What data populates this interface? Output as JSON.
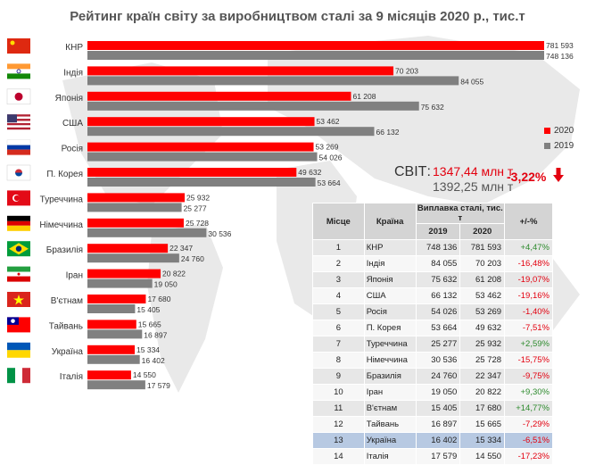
{
  "title": "Рейтинг країн світу за виробництвом сталі за 9 місяців 2020 р., тис.т",
  "colors": {
    "y2020": "#ff0000",
    "y2019": "#808080",
    "map": "#e6e6e6",
    "positive": "#2e8b2e",
    "negative": "#e3000f"
  },
  "legend": [
    {
      "label": "2020",
      "color": "#ff0000"
    },
    {
      "label": "2019",
      "color": "#808080"
    }
  ],
  "world": {
    "label": "СВІТ:",
    "v2020": "1347,44 млн т",
    "v2019": "1392,25 млн т",
    "change": "-3,22%",
    "arrow_icon": "down-arrow-icon"
  },
  "chart_data": {
    "type": "bar",
    "orientation": "horizontal",
    "title": "Рейтинг країн світу за виробництвом сталі за 9 місяців 2020 р., тис.т",
    "categories": [
      "КНР",
      "Індія",
      "Японія",
      "США",
      "Росія",
      "П. Корея",
      "Туреччина",
      "Німеччина",
      "Бразилія",
      "Іран",
      "В'єтнам",
      "Тайвань",
      "Україна",
      "Італія"
    ],
    "flag_icons": [
      "china-flag-icon",
      "india-flag-icon",
      "japan-flag-icon",
      "usa-flag-icon",
      "russia-flag-icon",
      "south-korea-flag-icon",
      "turkey-flag-icon",
      "germany-flag-icon",
      "brazil-flag-icon",
      "iran-flag-icon",
      "vietnam-flag-icon",
      "taiwan-flag-icon",
      "ukraine-flag-icon",
      "italy-flag-icon"
    ],
    "series": [
      {
        "name": "2020",
        "values": [
          781593,
          70203,
          61208,
          53462,
          53269,
          49632,
          25932,
          25728,
          22347,
          20822,
          17680,
          15665,
          15334,
          14550
        ],
        "labels": [
          "781 593",
          "70 203",
          "61 208",
          "53 462",
          "53 269",
          "49 632",
          "25 932",
          "25 728",
          "22 347",
          "20 822",
          "17 680",
          "15 665",
          "15 334",
          "14 550"
        ]
      },
      {
        "name": "2019",
        "values": [
          748136,
          84055,
          75632,
          66132,
          54026,
          53664,
          25277,
          30536,
          24760,
          19050,
          15405,
          16897,
          16402,
          17579
        ],
        "labels": [
          "748 136",
          "84 055",
          "75 632",
          "66 132",
          "54 026",
          "53 664",
          "25 277",
          "30 536",
          "24 760",
          "19 050",
          "15 405",
          "16 897",
          "16 402",
          "17 579"
        ]
      }
    ],
    "axis_break": true,
    "legend_position": "right"
  },
  "table": {
    "headers": {
      "rank": "Місце",
      "country": "Країна",
      "group": "Виплавка сталі, тис. т",
      "y2019": "2019",
      "y2020": "2020",
      "change": "+/-%"
    },
    "rows": [
      {
        "rank": "1",
        "country": "КНР",
        "v2019": "748 136",
        "v2020": "781 593",
        "change": "+4,47%",
        "sign": "pos"
      },
      {
        "rank": "2",
        "country": "Індія",
        "v2019": "84 055",
        "v2020": "70 203",
        "change": "-16,48%",
        "sign": "neg"
      },
      {
        "rank": "3",
        "country": "Японія",
        "v2019": "75 632",
        "v2020": "61 208",
        "change": "-19,07%",
        "sign": "neg"
      },
      {
        "rank": "4",
        "country": "США",
        "v2019": "66 132",
        "v2020": "53 462",
        "change": "-19,16%",
        "sign": "neg"
      },
      {
        "rank": "5",
        "country": "Росія",
        "v2019": "54 026",
        "v2020": "53 269",
        "change": "-1,40%",
        "sign": "neg"
      },
      {
        "rank": "6",
        "country": "П. Корея",
        "v2019": "53 664",
        "v2020": "49 632",
        "change": "-7,51%",
        "sign": "neg"
      },
      {
        "rank": "7",
        "country": "Туреччина",
        "v2019": "25 277",
        "v2020": "25 932",
        "change": "+2,59%",
        "sign": "pos"
      },
      {
        "rank": "8",
        "country": "Німеччина",
        "v2019": "30 536",
        "v2020": "25 728",
        "change": "-15,75%",
        "sign": "neg"
      },
      {
        "rank": "9",
        "country": "Бразилія",
        "v2019": "24 760",
        "v2020": "22 347",
        "change": "-9,75%",
        "sign": "neg"
      },
      {
        "rank": "10",
        "country": "Іран",
        "v2019": "19 050",
        "v2020": "20 822",
        "change": "+9,30%",
        "sign": "pos"
      },
      {
        "rank": "11",
        "country": "В'єтнам",
        "v2019": "15 405",
        "v2020": "17 680",
        "change": "+14,77%",
        "sign": "pos"
      },
      {
        "rank": "12",
        "country": "Тайвань",
        "v2019": "16 897",
        "v2020": "15 665",
        "change": "-7,29%",
        "sign": "neg"
      },
      {
        "rank": "13",
        "country": "Україна",
        "v2019": "16 402",
        "v2020": "15 334",
        "change": "-6,51%",
        "sign": "neg",
        "highlight": true
      },
      {
        "rank": "14",
        "country": "Італія",
        "v2019": "17 579",
        "v2020": "14 550",
        "change": "-17,23%",
        "sign": "neg"
      }
    ]
  }
}
